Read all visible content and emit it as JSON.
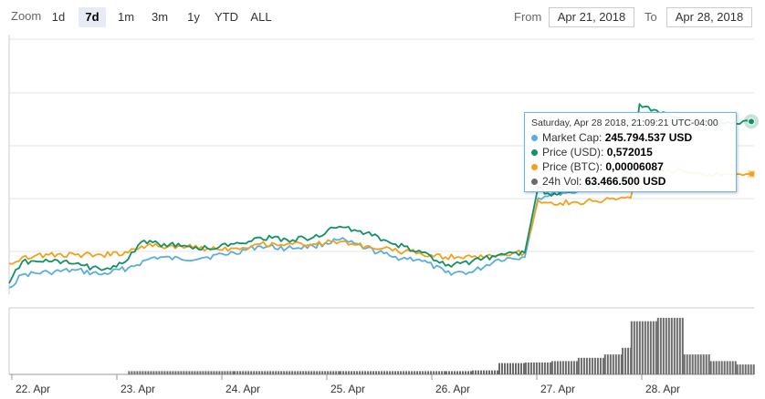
{
  "toolbar": {
    "zoom_label": "Zoom",
    "zoom_buttons": [
      "1d",
      "7d",
      "1m",
      "3m",
      "1y",
      "YTD",
      "ALL"
    ],
    "active_zoom": "7d",
    "from_label": "From",
    "from_value": "Apr 21, 2018",
    "to_label": "To",
    "to_value": "Apr 28, 2018"
  },
  "tooltip": {
    "header": "Saturday, Apr 28 2018, 21:09:21 UTC-04:00",
    "rows": [
      {
        "name": "Market Cap:",
        "value": "245.794.537 USD",
        "color": "#5aaedf"
      },
      {
        "name": "Price (USD):",
        "value": "0,572015",
        "color": "#149068"
      },
      {
        "name": "Price (BTC):",
        "value": "0,00006087",
        "color": "#f2a11b"
      },
      {
        "name": "24h Vol:",
        "value": "63.466.500 USD",
        "color": "#6b6b6b"
      }
    ]
  },
  "chart_data": {
    "type": "line",
    "x_axis": {
      "type": "datetime",
      "ticks": [
        "22. Apr",
        "23. Apr",
        "24. Apr",
        "25. Apr",
        "26. Apr",
        "27. Apr",
        "28. Apr"
      ],
      "range": [
        "2018-04-21T21:00",
        "2018-04-28T22:00"
      ]
    },
    "y_axes": "none labeled",
    "grid": true,
    "colors": {
      "market_cap": "#5aaedf",
      "price_usd": "#149068",
      "price_btc": "#f2a11b",
      "volume": "#6b6b6b"
    },
    "series": [
      {
        "name": "Market Cap",
        "color": "#5aaedf",
        "points": [
          [
            "2018-04-21T21:00",
            0.03
          ],
          [
            "2018-04-22T00:00",
            0.09
          ],
          [
            "2018-04-22T06:00",
            0.1
          ],
          [
            "2018-04-22T12:00",
            0.11
          ],
          [
            "2018-04-22T18:00",
            0.09
          ],
          [
            "2018-04-23T00:00",
            0.12
          ],
          [
            "2018-04-23T06:00",
            0.17
          ],
          [
            "2018-04-23T12:00",
            0.16
          ],
          [
            "2018-04-23T18:00",
            0.17
          ],
          [
            "2018-04-24T00:00",
            0.19
          ],
          [
            "2018-04-24T06:00",
            0.22
          ],
          [
            "2018-04-24T12:00",
            0.21
          ],
          [
            "2018-04-24T18:00",
            0.22
          ],
          [
            "2018-04-25T00:00",
            0.25
          ],
          [
            "2018-04-25T06:00",
            0.21
          ],
          [
            "2018-04-25T12:00",
            0.17
          ],
          [
            "2018-04-25T18:00",
            0.16
          ],
          [
            "2018-04-26T00:00",
            0.1
          ],
          [
            "2018-04-26T06:00",
            0.1
          ],
          [
            "2018-04-26T12:00",
            0.16
          ],
          [
            "2018-04-26T18:00",
            0.17
          ],
          [
            "2018-04-26T21:00",
            0.44
          ],
          [
            "2018-04-27T00:00",
            0.46
          ],
          [
            "2018-04-27T06:00",
            0.47
          ],
          [
            "2018-04-27T12:00",
            0.52
          ],
          [
            "2018-04-27T18:00",
            0.53
          ]
        ]
      },
      {
        "name": "Price (USD)",
        "color": "#149068",
        "points": [
          [
            "2018-04-21T21:00",
            0.05
          ],
          [
            "2018-04-22T00:00",
            0.15
          ],
          [
            "2018-04-22T06:00",
            0.15
          ],
          [
            "2018-04-22T12:00",
            0.14
          ],
          [
            "2018-04-22T18:00",
            0.11
          ],
          [
            "2018-04-23T00:00",
            0.16
          ],
          [
            "2018-04-23T03:00",
            0.24
          ],
          [
            "2018-04-23T12:00",
            0.22
          ],
          [
            "2018-04-23T18:00",
            0.21
          ],
          [
            "2018-04-24T00:00",
            0.23
          ],
          [
            "2018-04-24T06:00",
            0.26
          ],
          [
            "2018-04-24T12:00",
            0.25
          ],
          [
            "2018-04-24T18:00",
            0.26
          ],
          [
            "2018-04-25T00:00",
            0.31
          ],
          [
            "2018-04-25T06:00",
            0.28
          ],
          [
            "2018-04-25T12:00",
            0.23
          ],
          [
            "2018-04-25T18:00",
            0.2
          ],
          [
            "2018-04-26T00:00",
            0.13
          ],
          [
            "2018-04-26T06:00",
            0.15
          ],
          [
            "2018-04-26T12:00",
            0.18
          ],
          [
            "2018-04-26T18:00",
            0.19
          ],
          [
            "2018-04-26T21:00",
            0.49
          ],
          [
            "2018-04-27T00:00",
            0.45
          ],
          [
            "2018-04-27T06:00",
            0.49
          ],
          [
            "2018-04-27T12:00",
            0.5
          ],
          [
            "2018-04-27T18:00",
            0.53
          ],
          [
            "2018-04-27T20:00",
            0.87
          ],
          [
            "2018-04-28T00:00",
            0.84
          ],
          [
            "2018-04-28T06:00",
            0.8
          ],
          [
            "2018-04-28T12:00",
            0.78
          ],
          [
            "2018-04-28T18:00",
            0.78
          ],
          [
            "2018-04-28T21:00",
            0.79
          ]
        ]
      },
      {
        "name": "Price (BTC)",
        "color": "#f2a11b",
        "points": [
          [
            "2018-04-21T21:00",
            0.14
          ],
          [
            "2018-04-22T00:00",
            0.17
          ],
          [
            "2018-04-22T06:00",
            0.18
          ],
          [
            "2018-04-22T12:00",
            0.18
          ],
          [
            "2018-04-22T18:00",
            0.18
          ],
          [
            "2018-04-23T00:00",
            0.19
          ],
          [
            "2018-04-23T03:00",
            0.22
          ],
          [
            "2018-04-23T12:00",
            0.22
          ],
          [
            "2018-04-23T18:00",
            0.21
          ],
          [
            "2018-04-24T00:00",
            0.21
          ],
          [
            "2018-04-24T06:00",
            0.23
          ],
          [
            "2018-04-24T12:00",
            0.23
          ],
          [
            "2018-04-24T18:00",
            0.23
          ],
          [
            "2018-04-25T00:00",
            0.24
          ],
          [
            "2018-04-25T06:00",
            0.22
          ],
          [
            "2018-04-25T12:00",
            0.2
          ],
          [
            "2018-04-25T18:00",
            0.19
          ],
          [
            "2018-04-26T00:00",
            0.17
          ],
          [
            "2018-04-26T06:00",
            0.17
          ],
          [
            "2018-04-26T12:00",
            0.18
          ],
          [
            "2018-04-26T18:00",
            0.19
          ],
          [
            "2018-04-26T21:00",
            0.43
          ],
          [
            "2018-04-27T00:00",
            0.42
          ],
          [
            "2018-04-27T06:00",
            0.42
          ],
          [
            "2018-04-27T12:00",
            0.43
          ],
          [
            "2018-04-27T18:00",
            0.44
          ],
          [
            "2018-04-27T20:00",
            0.58
          ],
          [
            "2018-04-28T00:00",
            0.57
          ],
          [
            "2018-04-28T06:00",
            0.56
          ],
          [
            "2018-04-28T12:00",
            0.55
          ],
          [
            "2018-04-28T18:00",
            0.55
          ],
          [
            "2018-04-28T21:00",
            0.55
          ]
        ]
      },
      {
        "name": "24h Vol",
        "color": "#6b6b6b",
        "type": "column",
        "points": [
          [
            "2018-04-21T21:00",
            0.0
          ],
          [
            "2018-04-23T00:00",
            0.05
          ],
          [
            "2018-04-24T00:00",
            0.05
          ],
          [
            "2018-04-25T00:00",
            0.05
          ],
          [
            "2018-04-26T00:00",
            0.05
          ],
          [
            "2018-04-26T06:00",
            0.06
          ],
          [
            "2018-04-26T12:00",
            0.17
          ],
          [
            "2018-04-26T18:00",
            0.18
          ],
          [
            "2018-04-27T00:00",
            0.2
          ],
          [
            "2018-04-27T06:00",
            0.25
          ],
          [
            "2018-04-27T12:00",
            0.3
          ],
          [
            "2018-04-27T16:00",
            0.4
          ],
          [
            "2018-04-27T18:00",
            0.8
          ],
          [
            "2018-04-28T00:00",
            0.85
          ],
          [
            "2018-04-28T06:00",
            0.3
          ],
          [
            "2018-04-28T12:00",
            0.2
          ],
          [
            "2018-04-28T18:00",
            0.15
          ],
          [
            "2018-04-28T22:00",
            0.14
          ]
        ]
      }
    ]
  }
}
